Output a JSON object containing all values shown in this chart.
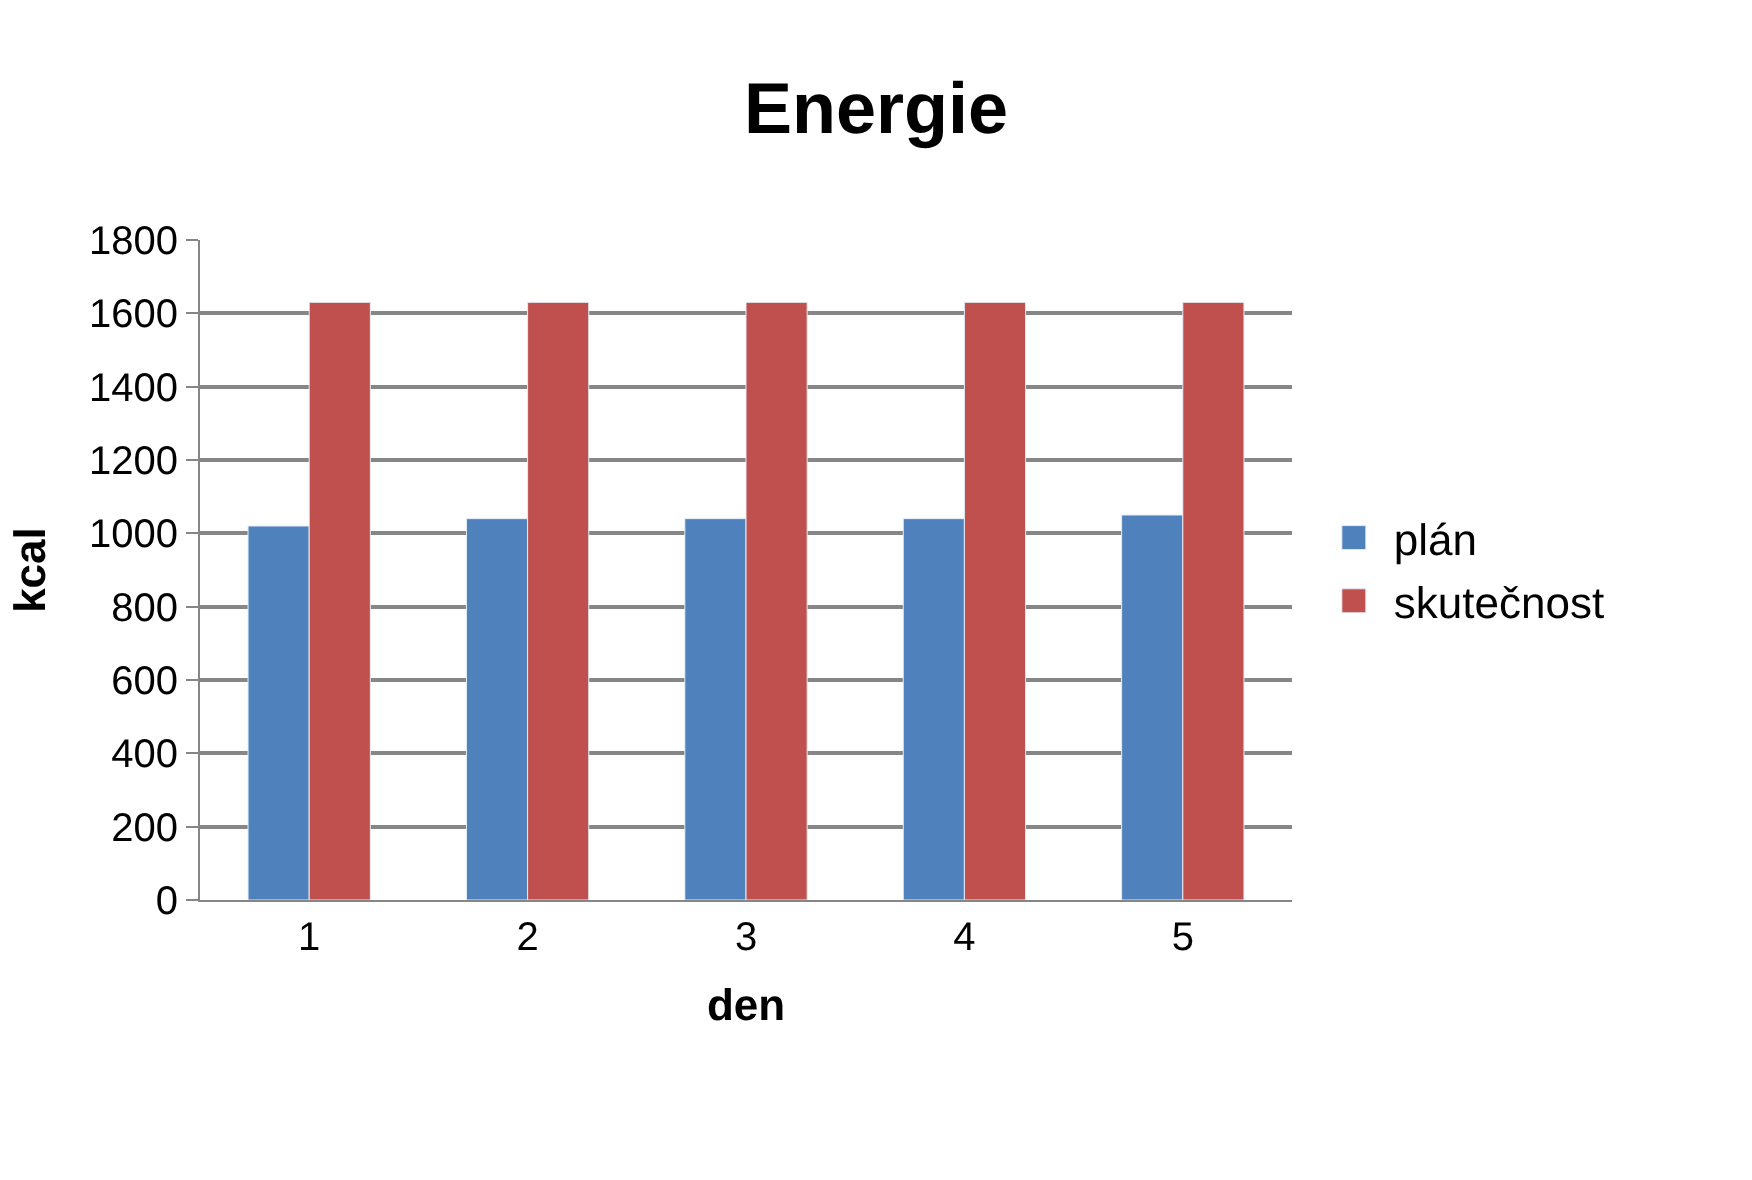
{
  "chart_data": {
    "type": "bar",
    "title": "Energie",
    "xlabel": "den",
    "ylabel": "kcal",
    "categories": [
      "1",
      "2",
      "3",
      "4",
      "5"
    ],
    "series": [
      {
        "name": "plán",
        "color": "#4f81bd",
        "values": [
          1020,
          1040,
          1040,
          1040,
          1050
        ]
      },
      {
        "name": "skutečnost",
        "color": "#c0504d",
        "values": [
          1630,
          1630,
          1630,
          1630,
          1630
        ]
      }
    ],
    "ylim": [
      0,
      1800
    ],
    "yticks": [
      0,
      200,
      400,
      600,
      800,
      1000,
      1200,
      1400,
      1600,
      1800
    ],
    "grid": "y",
    "legend": "right"
  }
}
